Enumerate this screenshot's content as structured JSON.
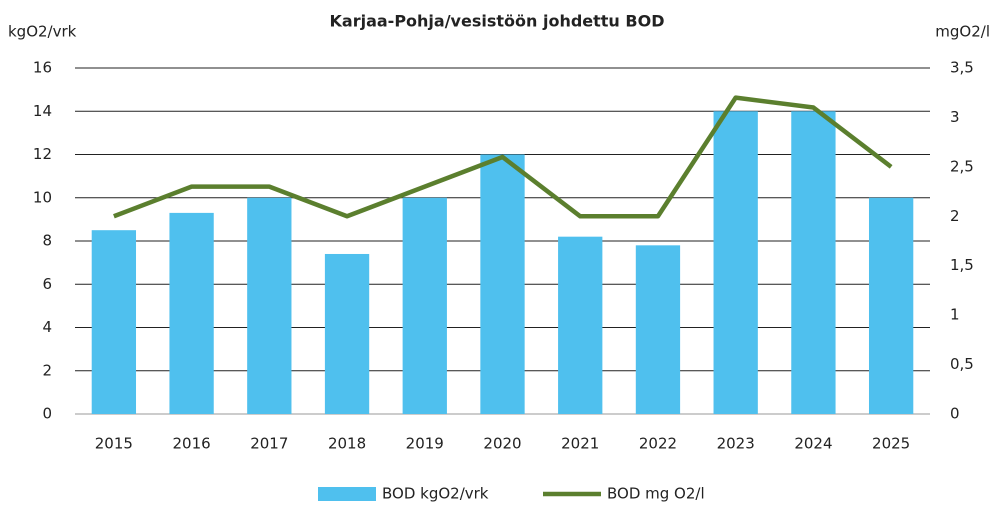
{
  "chart_data": {
    "type": "bar",
    "title": "Karjaa-Pohja/vesistöön johdettu BOD",
    "y_label": "kgO2/vrk",
    "y2_label": "mgO2/l",
    "categories": [
      "2015",
      "2016",
      "2017",
      "2018",
      "2019",
      "2020",
      "2021",
      "2022",
      "2023",
      "2024",
      "2025"
    ],
    "series": [
      {
        "name": "BOD kgO2/vrk",
        "type": "bar",
        "color": "#4fc0ee",
        "values": [
          8.5,
          9.3,
          10,
          7.4,
          10,
          12,
          8.2,
          7.8,
          14,
          14,
          10
        ]
      },
      {
        "name": "BOD mg O2/l",
        "type": "line",
        "axis": "y2",
        "color": "#5b7f2e",
        "values": [
          2.0,
          2.3,
          2.3,
          2.0,
          2.3,
          2.6,
          2.0,
          2.0,
          3.2,
          3.1,
          2.5
        ]
      }
    ],
    "ylim": [
      0,
      16
    ],
    "yticks": [
      0,
      2,
      4,
      6,
      8,
      10,
      12,
      14,
      16
    ],
    "y2lim": [
      0,
      3.5
    ],
    "y2ticks": [
      0,
      {
        "value": 0.5,
        "label": "0,5"
      },
      1,
      {
        "value": 1.5,
        "label": "1,5"
      },
      2,
      {
        "value": 2.5,
        "label": "2,5"
      },
      3,
      {
        "value": 3.5,
        "label": "3,5"
      }
    ],
    "grid": true,
    "legend": "bottom"
  }
}
